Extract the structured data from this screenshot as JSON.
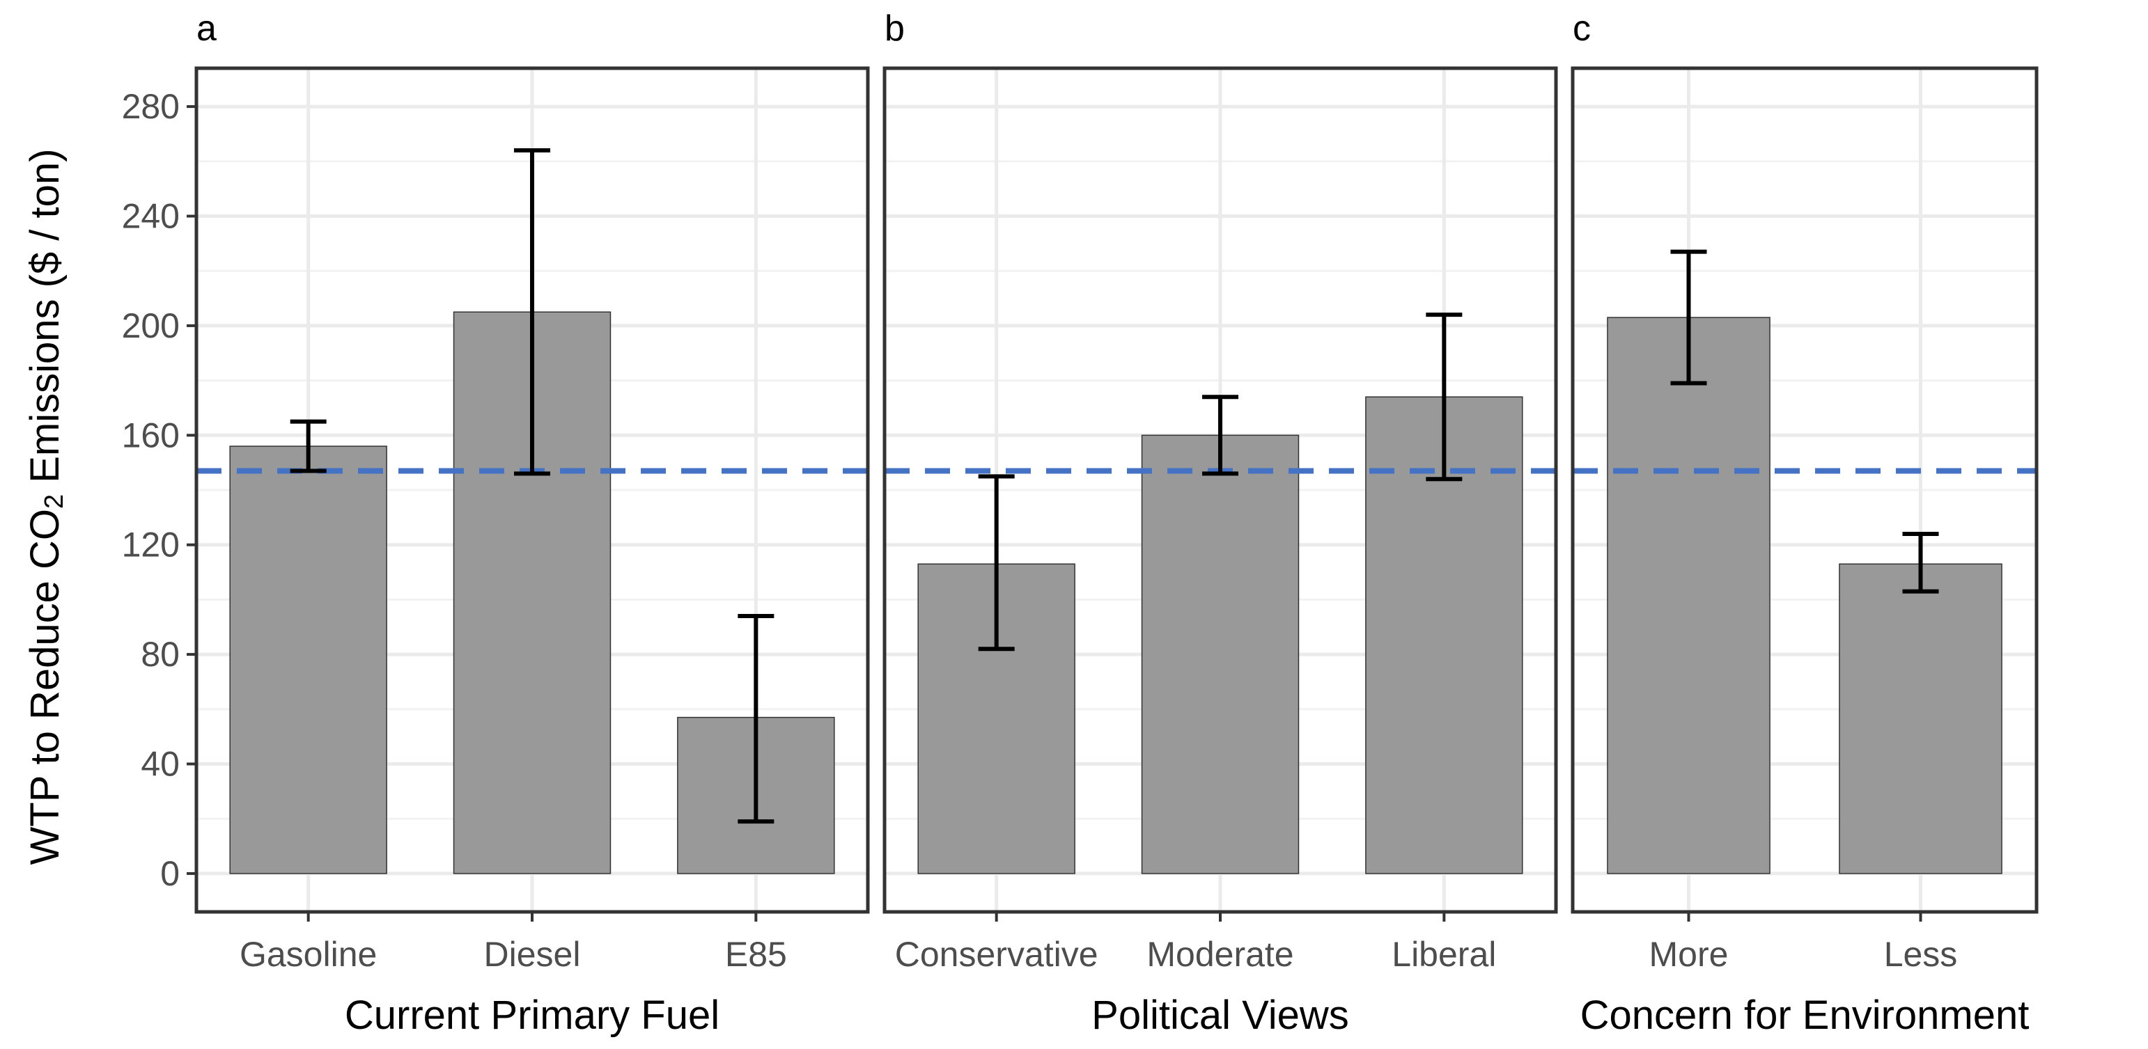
{
  "chart_data": {
    "type": "bar",
    "ylabel_parts": [
      "WTP to Reduce CO",
      "2",
      " Emissions ($ / ton)"
    ],
    "ylim": [
      -14,
      294
    ],
    "yticks": [
      0,
      40,
      80,
      120,
      160,
      200,
      240,
      280
    ],
    "yticks_labels": [
      "0",
      "40",
      "80",
      "120",
      "160",
      "200",
      "240",
      "280"
    ],
    "reference_line": {
      "value": 147,
      "style": "dashed",
      "color": "#4472C4"
    },
    "grid": true,
    "bar_color": "#999999",
    "errorbar_color": "#000000",
    "panels": [
      {
        "tag": "a",
        "xlabel": "Current Primary Fuel",
        "categories": [
          "Gasoline",
          "Diesel",
          "E85"
        ],
        "values": [
          156,
          205,
          57
        ],
        "error_low": [
          147,
          146,
          19
        ],
        "error_high": [
          165,
          264,
          94
        ]
      },
      {
        "tag": "b",
        "xlabel": "Political Views",
        "categories": [
          "Conservative",
          "Moderate",
          "Liberal"
        ],
        "values": [
          113,
          160,
          174
        ],
        "error_low": [
          82,
          146,
          144
        ],
        "error_high": [
          145,
          174,
          204
        ]
      },
      {
        "tag": "c",
        "xlabel": "Concern for Environment",
        "categories": [
          "More",
          "Less"
        ],
        "values": [
          203,
          113
        ],
        "error_low": [
          179,
          103
        ],
        "error_high": [
          227,
          124
        ]
      }
    ]
  }
}
